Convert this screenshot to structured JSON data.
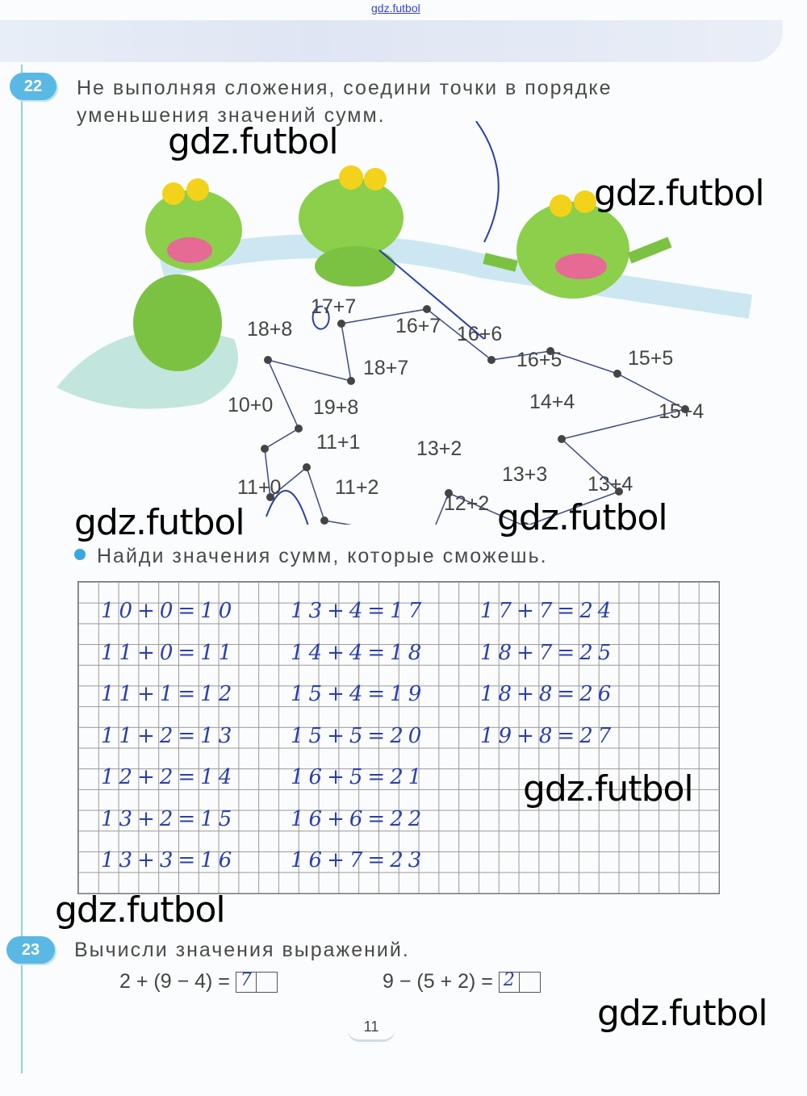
{
  "watermark_top": "gdz.futbol",
  "watermarks": [
    "gdz.futbol",
    "gdz.futbol",
    "gdz.futbol",
    "gdz.futbol",
    "gdz.futbol",
    "gdz.futbol",
    "gdz.futbol"
  ],
  "task22": {
    "number": "22",
    "text_line1": "Не выполняя сложения, соедини точки в порядке",
    "text_line2": "уменьшения значений сумм.",
    "dots": [
      "17+7",
      "16+7",
      "16+6",
      "16+5",
      "15+5",
      "15+4",
      "14+4",
      "13+4",
      "13+3",
      "13+2",
      "12+2",
      "11+2",
      "11+1",
      "11+0",
      "10+0",
      "19+8",
      "18+8",
      "18+7"
    ],
    "subtask": "Найди значения сумм, которые сможешь.",
    "answers": [
      [
        "10+0=10",
        "11+0=11",
        "11+1=12",
        "11+2=13",
        "12+2=14",
        "13+2=15",
        "13+3=16"
      ],
      [
        "13+4=17",
        "14+4=18",
        "15+4=19",
        "15+5=20",
        "16+5=21",
        "16+6=22",
        "16+7=23"
      ],
      [
        "17+7=24",
        "18+7=25",
        "18+8=26",
        "19+8=27"
      ]
    ]
  },
  "task23": {
    "number": "23",
    "text": "Вычисли значения выражений.",
    "expr1": "2 + (9 − 4) =",
    "answer1": "7",
    "expr2": "9 − (5 + 2) =",
    "answer2": "2"
  },
  "page_number": "11",
  "colors": {
    "badge": "#5ab8e4",
    "ink": "#2a3fae",
    "frog": "#7cc242"
  }
}
